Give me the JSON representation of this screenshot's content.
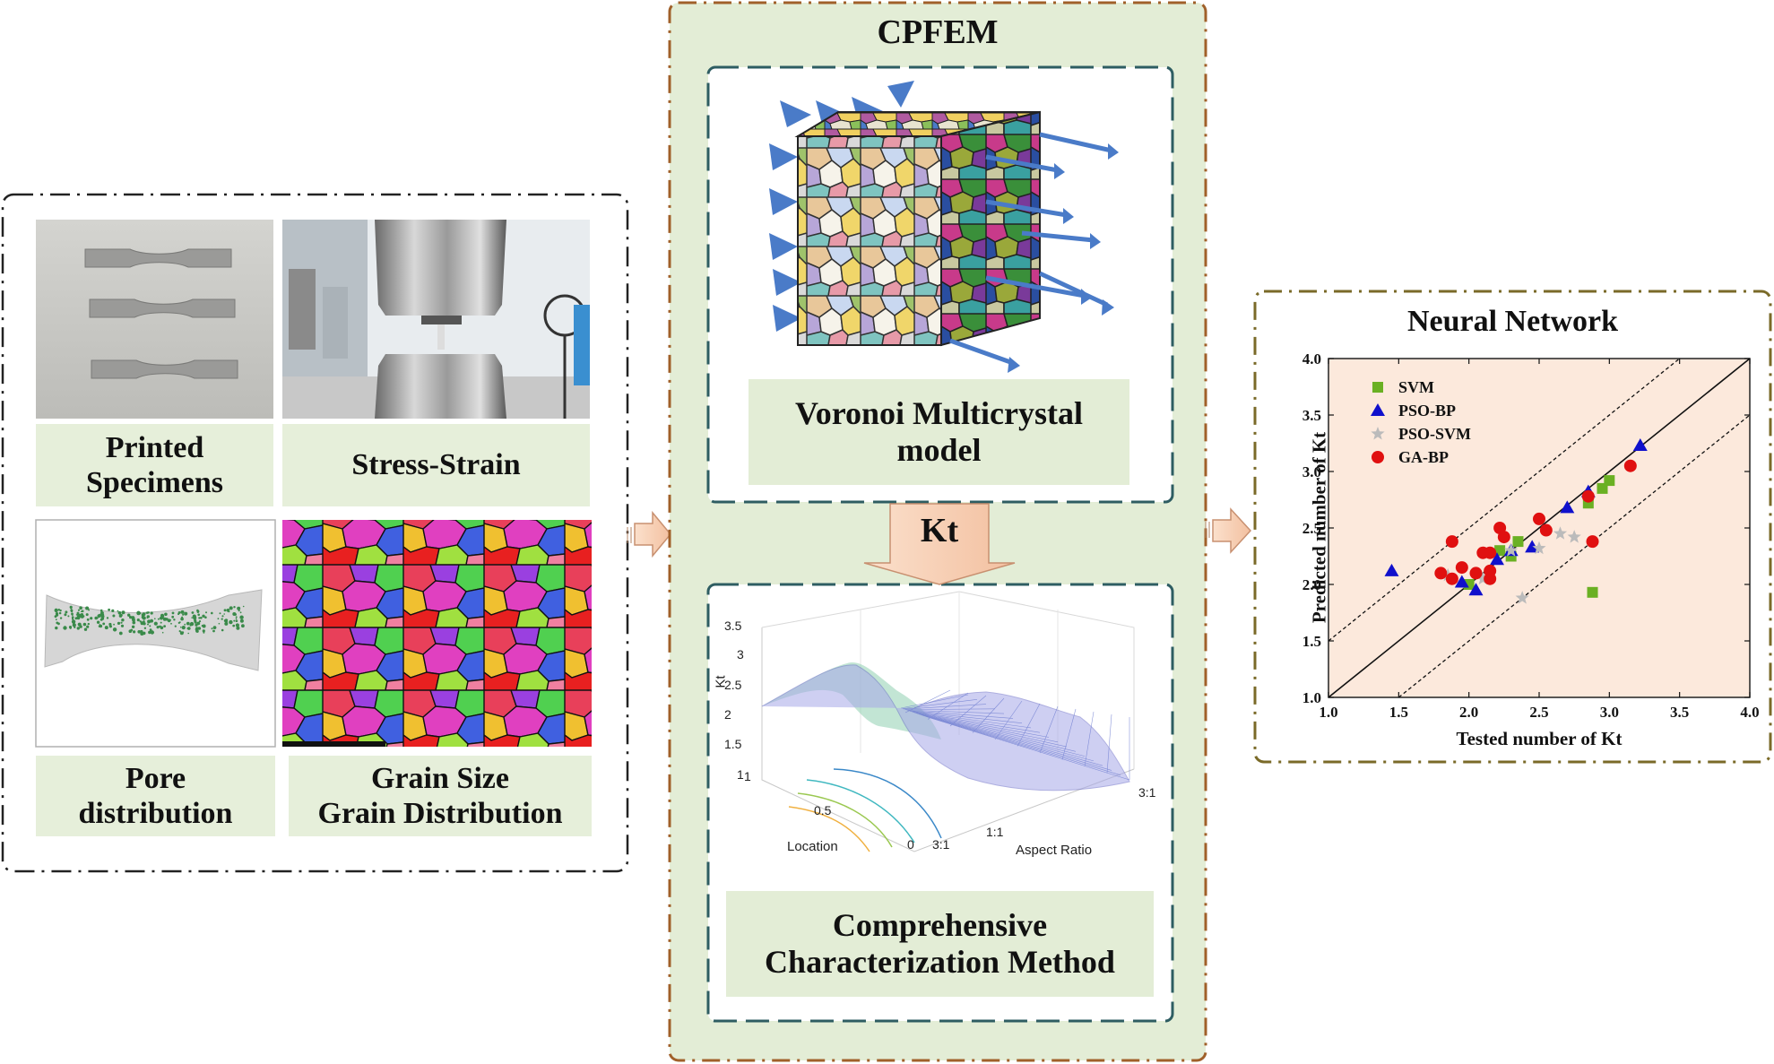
{
  "left_panel": {
    "printed_specimens": "Printed\nSpecimens",
    "stress_strain": "Stress-Strain",
    "pore_distribution": "Pore\ndistribution",
    "grain_size": "Grain Size\nGrain Distribution"
  },
  "cpfem": {
    "title": "CPFEM",
    "voronoi_label": "Voronoi Multicrystal\nmodel",
    "kt_label": "Kt",
    "method_label": "Comprehensive\nCharacterization Method",
    "surface_plot": {
      "zlabel": "Kt",
      "xlabel": "Location",
      "ylabel": "Aspect Ratio",
      "z_ticks": [
        "1",
        "1.5",
        "2",
        "2.5",
        "3",
        "3.5"
      ],
      "x_ticks": [
        "0",
        "0.5",
        "1"
      ],
      "y_ticks": [
        "3:1",
        "1:1",
        "3:1"
      ]
    }
  },
  "neural_network": {
    "title": "Neural Network",
    "chart_data": {
      "type": "scatter",
      "xlabel": "Tested number of Kt",
      "ylabel": "Predicted number of Kt",
      "xlim": [
        1.0,
        4.0
      ],
      "ylim": [
        1.0,
        4.0
      ],
      "x_ticks": [
        "1.0",
        "1.5",
        "2.0",
        "2.5",
        "3.0",
        "3.5",
        "4.0"
      ],
      "y_ticks": [
        "1.0",
        "1.5",
        "2.0",
        "2.5",
        "3.0",
        "3.5",
        "4.0"
      ],
      "legend_position": "top-left",
      "reference_lines": [
        {
          "style": "solid",
          "intercept": 0
        },
        {
          "style": "dashed",
          "intercept": 0.5
        },
        {
          "style": "dashed",
          "intercept": -0.5
        }
      ],
      "series": [
        {
          "name": "SVM",
          "marker": "square",
          "color": "#6ab023",
          "points": [
            [
              2.0,
              2.0
            ],
            [
              2.22,
              2.3
            ],
            [
              2.3,
              2.25
            ],
            [
              2.35,
              2.38
            ],
            [
              2.85,
              2.72
            ],
            [
              2.95,
              2.85
            ],
            [
              3.0,
              2.92
            ],
            [
              2.88,
              1.93
            ]
          ]
        },
        {
          "name": "PSO-BP",
          "marker": "triangle",
          "color": "#1010cc",
          "points": [
            [
              1.45,
              2.12
            ],
            [
              1.95,
              2.02
            ],
            [
              2.05,
              1.95
            ],
            [
              2.2,
              2.22
            ],
            [
              2.3,
              2.3
            ],
            [
              2.45,
              2.33
            ],
            [
              2.7,
              2.68
            ],
            [
              2.85,
              2.82
            ],
            [
              3.22,
              3.23
            ]
          ]
        },
        {
          "name": "PSO-SVM",
          "marker": "star",
          "color": "#bbbbbb",
          "points": [
            [
              1.85,
              2.08
            ],
            [
              2.1,
              2.05
            ],
            [
              2.3,
              2.3
            ],
            [
              2.38,
              1.88
            ],
            [
              2.5,
              2.32
            ],
            [
              2.65,
              2.45
            ],
            [
              2.75,
              2.42
            ]
          ]
        },
        {
          "name": "GA-BP",
          "marker": "circle",
          "color": "#e01010",
          "points": [
            [
              1.8,
              2.1
            ],
            [
              1.88,
              2.38
            ],
            [
              1.88,
              2.05
            ],
            [
              1.95,
              2.15
            ],
            [
              2.05,
              2.1
            ],
            [
              2.15,
              2.12
            ],
            [
              2.1,
              2.28
            ],
            [
              2.15,
              2.28
            ],
            [
              2.22,
              2.5
            ],
            [
              2.25,
              2.42
            ],
            [
              2.5,
              2.58
            ],
            [
              2.55,
              2.48
            ],
            [
              2.85,
              2.78
            ],
            [
              2.88,
              2.38
            ],
            [
              3.15,
              3.05
            ],
            [
              2.15,
              2.05
            ]
          ]
        }
      ]
    }
  }
}
